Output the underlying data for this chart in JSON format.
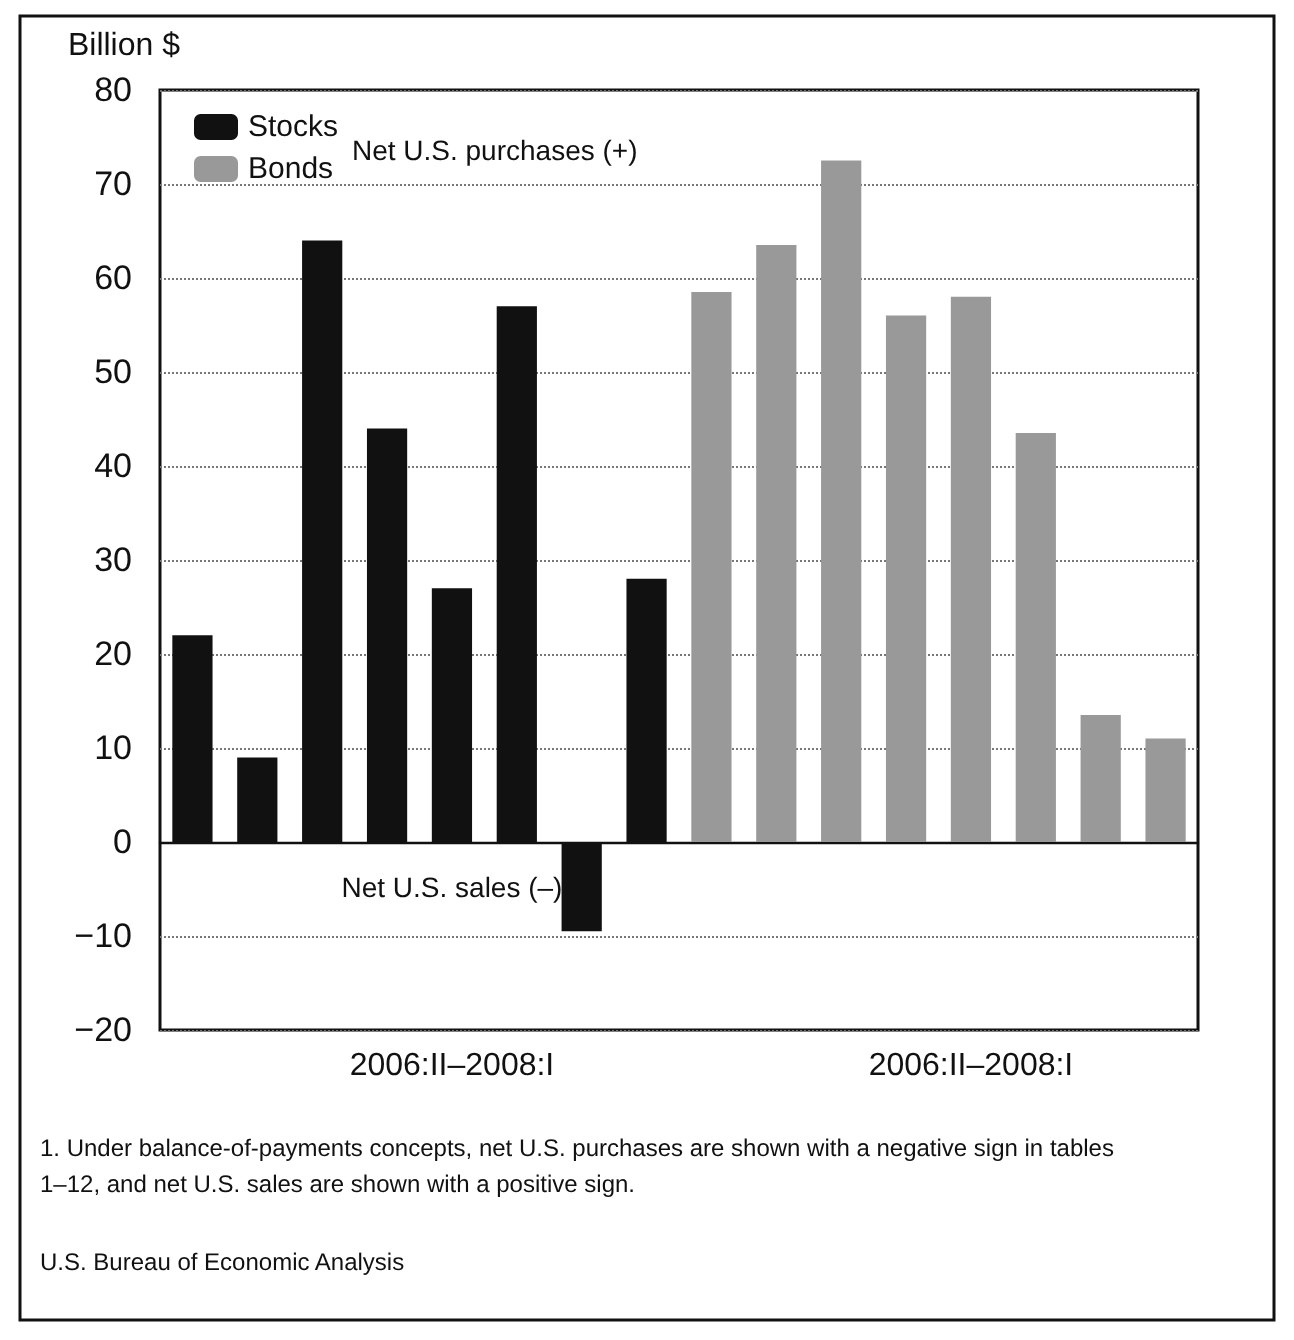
{
  "chart_data": {
    "type": "bar",
    "ylabel": "Billion $",
    "categories": [
      null,
      null,
      null,
      null,
      null,
      null,
      null,
      null,
      null,
      null,
      null,
      null,
      null,
      null,
      null,
      null
    ],
    "series": [
      {
        "name": "Stocks",
        "color": "#111111",
        "values": [
          22,
          9,
          64,
          44,
          27,
          57,
          -9.5,
          28,
          null,
          null,
          null,
          null,
          null,
          null,
          null,
          null
        ]
      },
      {
        "name": "Bonds",
        "color": "#999999",
        "values": [
          null,
          null,
          null,
          null,
          null,
          null,
          null,
          null,
          58.5,
          63.5,
          72.5,
          56,
          58,
          43.5,
          13.5,
          11
        ]
      }
    ],
    "ylim": [
      -20,
      80
    ],
    "yticks": [
      -20,
      -10,
      0,
      10,
      20,
      30,
      40,
      50,
      60,
      70,
      80
    ],
    "grid": "y",
    "legend": "top left",
    "annotations": [
      "2006:II–2008:I",
      "2006:II–2008:I",
      "Net U.S. purchases (+)",
      "Net U.S. sales (–)",
      "1. Under balance-of-payments concepts, net U.S. purchases are shown with a negative sign in tables 1–12, and net U.S. sales are shown with a positive sign.",
      "U.S. Bureau of Economic Analysis"
    ]
  }
}
